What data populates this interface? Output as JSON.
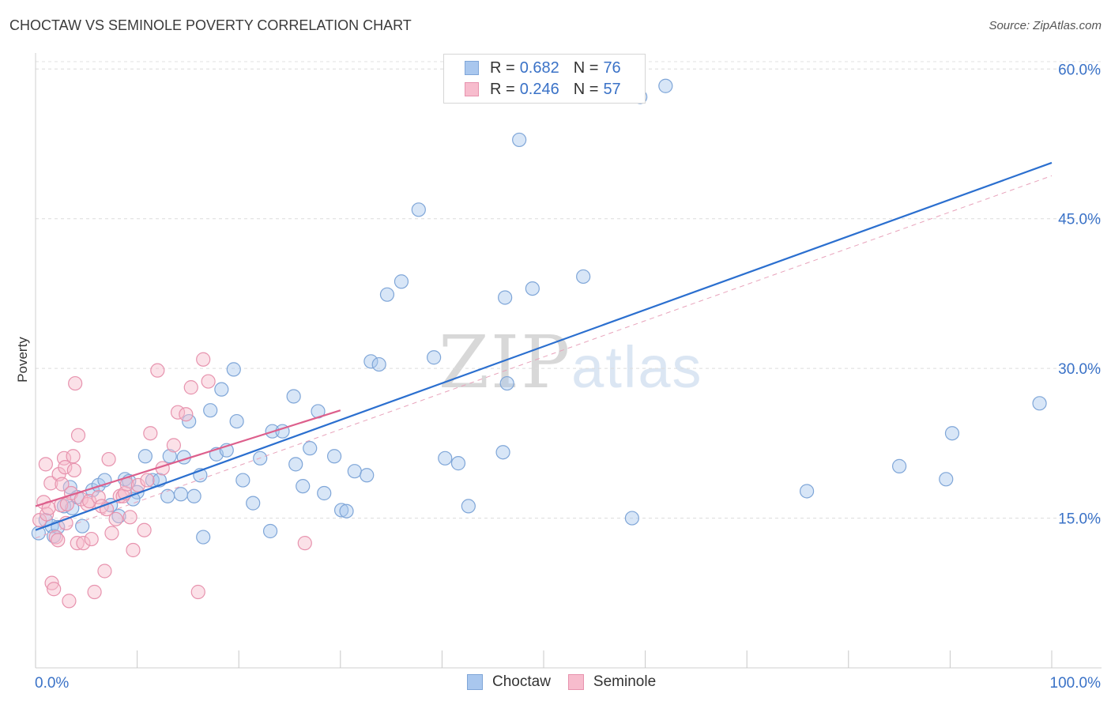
{
  "title": "CHOCTAW VS SEMINOLE POVERTY CORRELATION CHART",
  "source": "Source: ZipAtlas.com",
  "watermark": {
    "part1": "ZIP",
    "part2": "atlas"
  },
  "legend": [
    {
      "r_label": "R =",
      "r_value": "0.682",
      "n_label": "N =",
      "n_value": "76",
      "color": "#a9c7ee",
      "border": "#7fa6d8"
    },
    {
      "r_label": "R =",
      "r_value": "0.246",
      "n_label": "N =",
      "n_value": "57",
      "color": "#f7bccd",
      "border": "#e793ae"
    }
  ],
  "bottom_legend": [
    {
      "label": "Choctaw",
      "color": "#a9c7ee",
      "border": "#7fa6d8"
    },
    {
      "label": "Seminole",
      "color": "#f7bccd",
      "border": "#e793ae"
    }
  ],
  "chart_data": {
    "type": "scatter",
    "title": "CHOCTAW VS SEMINOLE POVERTY CORRELATION CHART",
    "xlabel": "",
    "ylabel": "Poverty",
    "xlim": [
      0,
      100
    ],
    "ylim": [
      0,
      62
    ],
    "x_tick_labels": [
      "0.0%",
      "100.0%"
    ],
    "y_ticks": [
      15,
      30,
      45,
      60
    ],
    "y_tick_labels": [
      "15.0%",
      "30.0%",
      "45.0%",
      "60.0%"
    ],
    "grid": true,
    "legend_position": "top-center",
    "series": [
      {
        "name": "Choctaw",
        "color": "#a9c7ee",
        "edge": "#7fa6d8",
        "line_color": "#2b6fcf",
        "trend": {
          "x": [
            0,
            100
          ],
          "y": [
            13.8,
            50.6
          ]
        },
        "dashed_trend": {
          "x": [
            0,
            100
          ],
          "y": [
            13.0,
            49.3
          ]
        },
        "x": [
          0.3,
          1.0,
          1.6,
          1.8,
          2.2,
          2.8,
          3.4,
          3.6,
          4.6,
          5.6,
          6.2,
          7.4,
          8.2,
          8.8,
          9.2,
          10.0,
          10.8,
          11.5,
          12.2,
          13.2,
          14.3,
          15.6,
          16.2,
          14.6,
          15.1,
          16.5,
          17.2,
          17.8,
          18.3,
          18.8,
          19.5,
          19.8,
          20.4,
          21.4,
          22.1,
          23.1,
          23.3,
          24.3,
          25.4,
          25.6,
          26.3,
          27.0,
          27.8,
          28.4,
          29.4,
          30.1,
          30.6,
          31.4,
          32.6,
          33.0,
          33.8,
          36.0,
          34.6,
          37.7,
          39.2,
          40.3,
          41.6,
          42.6,
          46.0,
          46.4,
          47.6,
          46.2,
          53.9,
          48.9,
          62.0,
          59.5,
          58.7,
          75.9,
          85.0,
          90.2,
          89.6,
          98.8,
          4.1,
          6.8,
          9.6,
          13.0
        ],
        "y": [
          13.5,
          14.8,
          14.2,
          13.2,
          14.1,
          16.2,
          18.1,
          16.0,
          14.2,
          17.8,
          18.3,
          16.3,
          15.2,
          18.9,
          18.7,
          17.6,
          21.2,
          18.8,
          18.8,
          21.2,
          17.4,
          17.2,
          19.3,
          21.1,
          24.7,
          13.1,
          25.8,
          21.4,
          27.9,
          21.8,
          29.9,
          24.7,
          18.8,
          16.5,
          21.0,
          13.7,
          23.7,
          23.7,
          27.2,
          20.4,
          18.2,
          22.0,
          25.7,
          17.5,
          21.2,
          15.8,
          15.7,
          19.7,
          19.3,
          30.7,
          30.4,
          38.7,
          37.4,
          45.9,
          31.1,
          21.0,
          20.5,
          16.2,
          21.6,
          28.5,
          52.9,
          37.1,
          39.2,
          38.0,
          58.3,
          57.2,
          15.0,
          17.7,
          20.2,
          23.5,
          18.9,
          26.5,
          17.1,
          18.8,
          16.9,
          17.2
        ]
      },
      {
        "name": "Seminole",
        "color": "#f7bccd",
        "edge": "#e793ae",
        "line_color": "#dd5f8c",
        "trend": {
          "x": [
            0,
            30
          ],
          "y": [
            16.2,
            25.8
          ]
        },
        "x": [
          0.4,
          0.8,
          1.0,
          1.1,
          1.3,
          1.5,
          1.6,
          1.8,
          2.0,
          2.2,
          2.3,
          2.5,
          2.6,
          2.8,
          2.9,
          3.0,
          3.1,
          3.3,
          3.5,
          3.7,
          3.8,
          3.9,
          4.1,
          4.2,
          4.5,
          4.7,
          5.1,
          5.3,
          5.5,
          5.8,
          6.2,
          6.5,
          6.8,
          7.0,
          7.2,
          7.5,
          7.9,
          8.3,
          8.6,
          8.8,
          9.0,
          9.3,
          9.6,
          10.1,
          10.7,
          11.0,
          11.3,
          12.0,
          12.5,
          13.6,
          14.0,
          14.8,
          15.3,
          16.0,
          16.5,
          17.0,
          26.5
        ],
        "y": [
          14.8,
          16.6,
          20.4,
          15.4,
          16.0,
          18.5,
          8.5,
          7.9,
          13.1,
          12.8,
          19.4,
          16.3,
          18.4,
          21.0,
          20.1,
          14.5,
          16.4,
          6.7,
          17.5,
          21.2,
          19.8,
          28.5,
          12.5,
          23.3,
          16.9,
          12.5,
          16.4,
          16.7,
          12.9,
          7.6,
          17.1,
          16.2,
          9.7,
          15.9,
          20.9,
          13.5,
          14.9,
          17.2,
          17.2,
          17.5,
          18.4,
          15.1,
          11.8,
          18.3,
          13.8,
          18.8,
          23.5,
          29.8,
          20.0,
          22.3,
          25.6,
          25.4,
          28.1,
          7.6,
          30.9,
          28.7,
          12.5
        ]
      }
    ]
  }
}
